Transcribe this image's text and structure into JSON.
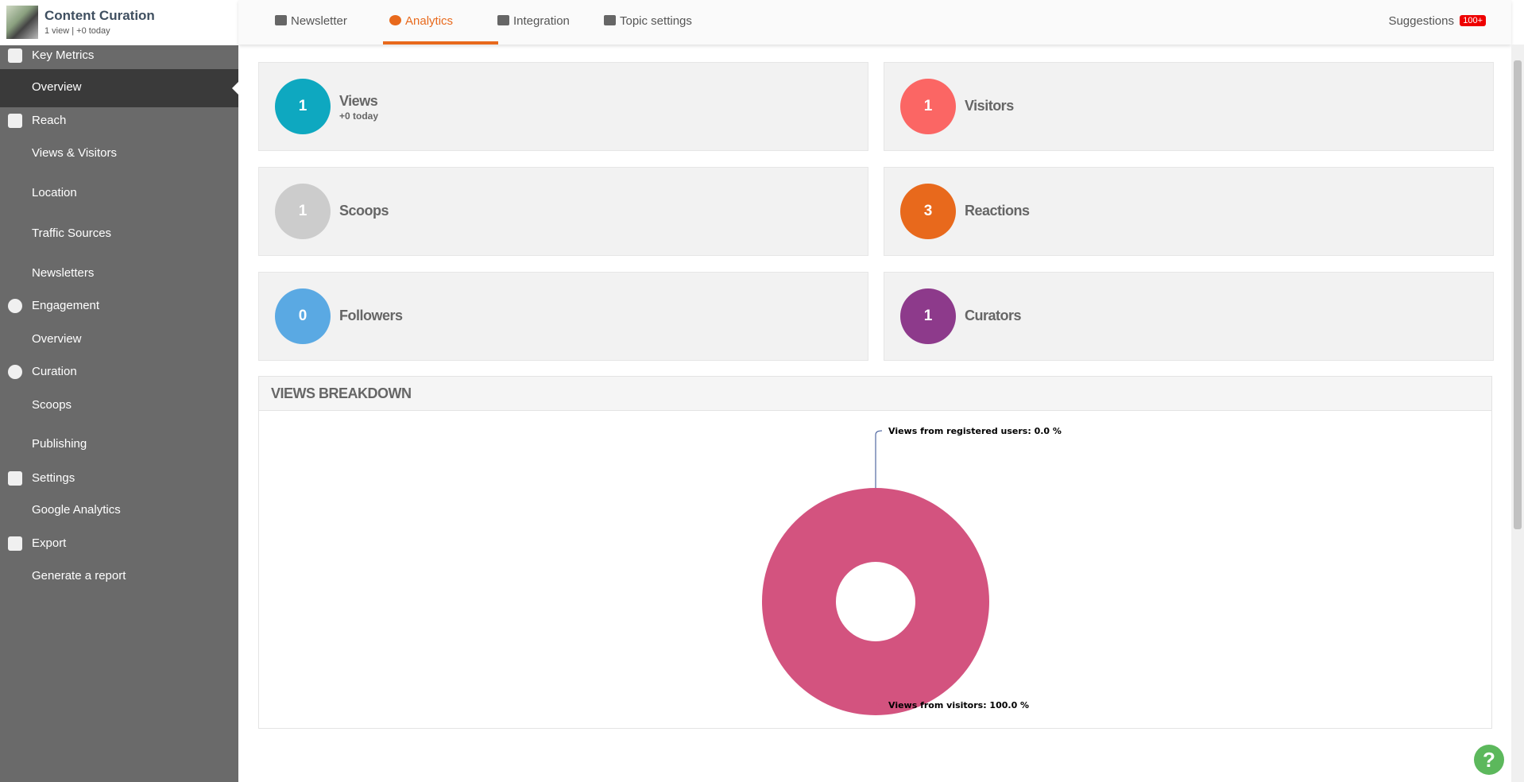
{
  "header": {
    "title": "Content Curation",
    "subtitle": "1 view | +0 today",
    "tabs": [
      "Newsletter",
      "Analytics",
      "Integration",
      "Topic settings"
    ],
    "active_tab": 1,
    "suggestions": "Suggestions",
    "badge": "100+"
  },
  "sidebar": [
    {
      "label": "Key Metrics",
      "section": true
    },
    {
      "label": "Overview",
      "active": true
    },
    {
      "label": "Reach",
      "section": true
    },
    {
      "label": "Views & Visitors"
    },
    {
      "label": "Location"
    },
    {
      "label": "Traffic Sources"
    },
    {
      "label": "Newsletters"
    },
    {
      "label": "Engagement",
      "section": true
    },
    {
      "label": "Overview"
    },
    {
      "label": "Curation",
      "section": true
    },
    {
      "label": "Scoops"
    },
    {
      "label": "Publishing"
    },
    {
      "label": "Settings",
      "section": true
    },
    {
      "label": "Google Analytics"
    },
    {
      "label": "Export",
      "section": true
    },
    {
      "label": "Generate a report"
    }
  ],
  "metrics": [
    {
      "value": 1,
      "label": "Views",
      "sub": "+0 today",
      "color": "#0ea8c0"
    },
    {
      "value": 1,
      "label": "Visitors",
      "color": "#fb6664"
    },
    {
      "value": 1,
      "label": "Scoops",
      "color": "#cccccc"
    },
    {
      "value": 3,
      "label": "Reactions",
      "color": "#e8691c"
    },
    {
      "value": 0,
      "label": "Followers",
      "color": "#5aa9e3"
    },
    {
      "value": 1,
      "label": "Curators",
      "color": "#8d3a8b"
    }
  ],
  "views_breakdown": {
    "title": "VIEWS BREAKDOWN",
    "chart_data": {
      "type": "pie",
      "labels": [
        "Views from registered users: 0.0 %",
        "Views from visitors: 100.0 %"
      ],
      "values": [
        0.0,
        100.0
      ],
      "colors": [
        "#2f4b8f",
        "#d3537f"
      ]
    }
  }
}
